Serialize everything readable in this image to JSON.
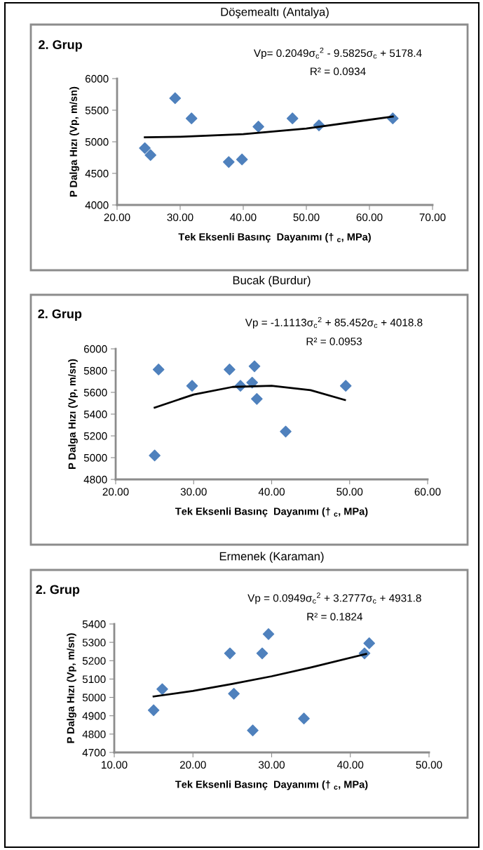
{
  "chart_data": [
    {
      "type": "scatter",
      "title": "Döşemealtı (Antalya)",
      "xlabel": "Tek Eksenli Basınç  Dayanımı († $_{c}$, MPa)",
      "ylabel": "P Dalga Hızı (Vp, m/sn)",
      "annotations": [
        "2. Grup",
        "Vp= 0.2049σ$_{c}$$^{2}$ - 9.5825σ$_{c}$ + 5178.4",
        "R² = 0.0934"
      ],
      "xlim": [
        20,
        70
      ],
      "xticks": [
        {
          "value": 20,
          "label": "20.00"
        },
        {
          "value": 30,
          "label": "30.00"
        },
        {
          "value": 40,
          "label": "40.00"
        },
        {
          "value": 50,
          "label": "50.00"
        },
        {
          "value": 60,
          "label": "60.00"
        },
        {
          "value": 70,
          "label": "70.00"
        }
      ],
      "ylim": [
        4000,
        6000
      ],
      "yticks": [
        4000,
        4500,
        5000,
        5500,
        6000
      ],
      "grid": false,
      "legend": false,
      "series": [
        {
          "color": "#4f81bd",
          "marker": "diamond",
          "x": [
            24.4,
            25.3,
            29.2,
            31.8,
            37.7,
            39.8,
            42.4,
            47.8,
            52.0,
            63.7
          ],
          "values": [
            4900,
            4790,
            5690,
            5370,
            4680,
            4720,
            5240,
            5370,
            5260,
            5370
          ]
        },
        {
          "type": "line",
          "color": "#000000",
          "marker": "none",
          "line_style": "solid",
          "x": [
            24.4,
            30,
            40,
            50,
            63.7
          ],
          "values": [
            5070,
            5080,
            5120,
            5210,
            5400
          ]
        }
      ]
    },
    {
      "type": "scatter",
      "title": "Bucak (Burdur)",
      "xlabel": "Tek Eksenli Basınç  Dayanımı († $_{c}$, MPa)",
      "ylabel": "P Dalga Hızı (Vp, m/sn)",
      "annotations": [
        "2. Grup",
        "Vp = -1.1113σ$_{c}$$^{2}$ + 85.452σ$_{c}$ + 4018.8",
        "R² = 0.0953"
      ],
      "xlim": [
        20,
        60
      ],
      "xticks": [
        {
          "value": 20,
          "label": "20.00"
        },
        {
          "value": 30,
          "label": "30.00"
        },
        {
          "value": 40,
          "label": "40.00"
        },
        {
          "value": 50,
          "label": "50.00"
        },
        {
          "value": 60,
          "label": "60.00"
        }
      ],
      "ylim": [
        4800,
        6000
      ],
      "yticks": [
        4800,
        5000,
        5200,
        5400,
        5600,
        5800,
        6000
      ],
      "grid": false,
      "legend": false,
      "series": [
        {
          "color": "#4f81bd",
          "marker": "diamond",
          "x": [
            25.0,
            25.5,
            29.8,
            34.6,
            36.0,
            37.5,
            37.8,
            38.1,
            41.8,
            49.5
          ],
          "values": [
            5020,
            5810,
            5660,
            5810,
            5660,
            5690,
            5840,
            5540,
            5240,
            5660
          ]
        },
        {
          "type": "line",
          "color": "#000000",
          "marker": "none",
          "line_style": "solid",
          "x": [
            25,
            30,
            35,
            40,
            45,
            49.4
          ],
          "values": [
            5460,
            5580,
            5650,
            5660,
            5620,
            5530
          ]
        }
      ]
    },
    {
      "type": "scatter",
      "title": "Ermenek (Karaman)",
      "xlabel": "Tek Eksenli Basınç  Dayanımı († $_{c}$, MPa)",
      "ylabel": "P Dalga Hızı (Vp, m/sn)",
      "annotations": [
        "2. Grup",
        "Vp = 0.0949σ$_{c}$$^{2}$ + 3.2777σ$_{c}$ + 4931.8",
        "R² = 0.1824"
      ],
      "xlim": [
        10,
        50
      ],
      "xticks": [
        {
          "value": 10,
          "label": "10.00"
        },
        {
          "value": 20,
          "label": "20.00"
        },
        {
          "value": 30,
          "label": "30.00"
        },
        {
          "value": 40,
          "label": "40.00"
        },
        {
          "value": 50,
          "label": "50.00"
        }
      ],
      "ylim": [
        4700,
        5400
      ],
      "yticks": [
        4700,
        4800,
        4900,
        5000,
        5100,
        5200,
        5300,
        5400
      ],
      "grid": false,
      "legend": false,
      "series": [
        {
          "color": "#4f81bd",
          "marker": "diamond",
          "x": [
            15.0,
            16.1,
            24.7,
            25.2,
            27.6,
            28.8,
            29.6,
            34.1,
            41.8,
            42.4
          ],
          "values": [
            4930,
            5045,
            5240,
            5020,
            4820,
            5240,
            5345,
            4885,
            5240,
            5295
          ]
        },
        {
          "type": "line",
          "color": "#000000",
          "marker": "none",
          "line_style": "solid",
          "x": [
            15,
            20,
            25,
            30,
            35,
            42
          ],
          "values": [
            5005,
            5035,
            5073,
            5115,
            5163,
            5237
          ]
        }
      ]
    }
  ]
}
